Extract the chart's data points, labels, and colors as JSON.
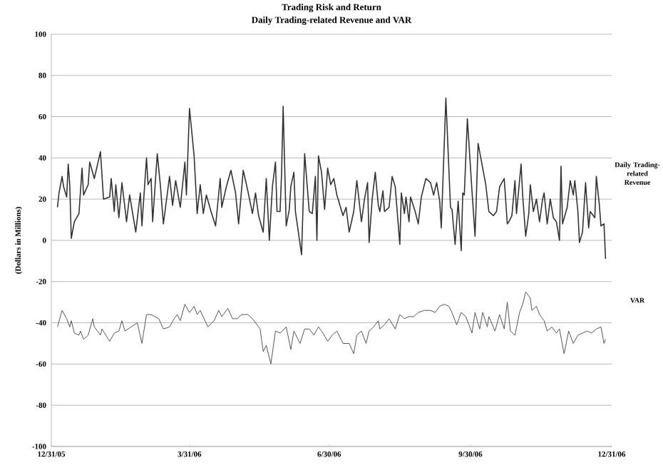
{
  "chart_data": {
    "type": "line",
    "title": "Trading Risk and Return",
    "subtitle": "Daily Trading-related Revenue and VAR",
    "ylabel": "(Dollars in Millions)",
    "xlim": [
      "2005-12-31",
      "2006-12-31"
    ],
    "xticks": [
      {
        "value": "2005-12-31",
        "label": "12/31/05"
      },
      {
        "value": "2006-03-31",
        "label": "3/31/06"
      },
      {
        "value": "2006-06-30",
        "label": "6/30/06"
      },
      {
        "value": "2006-09-30",
        "label": "9/30/06"
      },
      {
        "value": "2006-12-31",
        "label": "12/31/06"
      }
    ],
    "ylim": [
      -100,
      100
    ],
    "yticks": [
      -100,
      -80,
      -60,
      -40,
      -20,
      0,
      20,
      40,
      60,
      80,
      100
    ],
    "grid": "y",
    "legend": false,
    "marker": "none",
    "line_style": "solid",
    "series": [
      {
        "name": "Daily Trading-related Revenue",
        "color": "#333333",
        "x": [
          "2006-01-04",
          "2006-01-05",
          "2006-01-07",
          "2006-01-08",
          "2006-01-10",
          "2006-01-11",
          "2006-01-12",
          "2006-01-13",
          "2006-01-15",
          "2006-01-18",
          "2006-01-20",
          "2006-01-21",
          "2006-01-24",
          "2006-01-25",
          "2006-01-28",
          "2006-02-01",
          "2006-02-03",
          "2006-02-07",
          "2006-02-08",
          "2006-02-10",
          "2006-02-11",
          "2006-02-13",
          "2006-02-15",
          "2006-02-18",
          "2006-02-20",
          "2006-02-24",
          "2006-02-27",
          "2006-02-28",
          "2006-03-03",
          "2006-03-04",
          "2006-03-06",
          "2006-03-07",
          "2006-03-10",
          "2006-03-12",
          "2006-03-14",
          "2006-03-18",
          "2006-03-20",
          "2006-03-22",
          "2006-03-25",
          "2006-03-28",
          "2006-03-29",
          "2006-03-31",
          "2006-04-03",
          "2006-04-05",
          "2006-04-07",
          "2006-04-09",
          "2006-04-11",
          "2006-04-14",
          "2006-04-17",
          "2006-04-20",
          "2006-04-21",
          "2006-04-24",
          "2006-04-27",
          "2006-04-30",
          "2006-05-02",
          "2006-05-05",
          "2006-05-08",
          "2006-05-11",
          "2006-05-13",
          "2006-05-15",
          "2006-05-18",
          "2006-05-20",
          "2006-05-22",
          "2006-05-24",
          "2006-05-26",
          "2006-05-27",
          "2006-05-29",
          "2006-05-30",
          "2006-05-31",
          "2006-06-02",
          "2006-06-04",
          "2006-06-05",
          "2006-06-07",
          "2006-06-08",
          "2006-06-12",
          "2006-06-14",
          "2006-06-17",
          "2006-06-19",
          "2006-06-21",
          "2006-06-22",
          "2006-06-23",
          "2006-06-25",
          "2006-06-27",
          "2006-06-29",
          "2006-07-01",
          "2006-07-03",
          "2006-07-05",
          "2006-07-09",
          "2006-07-11",
          "2006-07-13",
          "2006-07-16",
          "2006-07-18",
          "2006-07-21",
          "2006-07-23",
          "2006-07-25",
          "2006-07-26",
          "2006-07-28",
          "2006-07-30",
          "2006-08-01",
          "2006-08-02",
          "2006-08-04",
          "2006-08-05",
          "2006-08-08",
          "2006-08-10",
          "2006-08-12",
          "2006-08-15",
          "2006-08-16",
          "2006-08-18",
          "2006-08-19",
          "2006-08-21",
          "2006-08-22",
          "2006-08-25",
          "2006-08-27",
          "2006-08-29",
          "2006-09-01",
          "2006-09-04",
          "2006-09-06",
          "2006-09-08",
          "2006-09-10",
          "2006-09-11",
          "2006-09-14",
          "2006-09-17",
          "2006-09-18",
          "2006-09-20",
          "2006-09-22",
          "2006-09-24",
          "2006-09-25",
          "2006-09-26",
          "2006-09-28",
          "2006-10-01",
          "2006-10-03",
          "2006-10-05",
          "2006-10-08",
          "2006-10-10",
          "2006-10-12",
          "2006-10-15",
          "2006-10-17",
          "2006-10-19",
          "2006-10-22",
          "2006-10-24",
          "2006-10-25",
          "2006-10-27",
          "2006-10-29",
          "2006-10-30",
          "2006-11-02",
          "2006-11-03",
          "2006-11-05",
          "2006-11-07",
          "2006-11-08",
          "2006-11-10",
          "2006-11-12",
          "2006-11-14",
          "2006-11-16",
          "2006-11-17",
          "2006-11-19",
          "2006-11-21",
          "2006-11-23",
          "2006-11-25",
          "2006-11-27",
          "2006-11-28",
          "2006-11-29",
          "2006-12-02",
          "2006-12-04",
          "2006-12-06",
          "2006-12-07",
          "2006-12-09",
          "2006-12-10",
          "2006-12-12",
          "2006-12-14",
          "2006-12-16",
          "2006-12-17",
          "2006-12-20",
          "2006-12-21",
          "2006-12-23",
          "2006-12-24",
          "2006-12-26",
          "2006-12-27"
        ],
        "values": [
          16,
          23,
          31,
          26,
          21,
          37,
          27,
          1,
          9,
          13,
          35,
          22,
          27,
          38,
          30,
          43,
          20,
          21,
          30,
          14,
          27,
          11,
          28,
          9,
          22,
          4,
          23,
          7,
          40,
          27,
          30,
          9,
          42,
          27,
          8,
          31,
          17,
          29,
          16,
          38,
          22,
          64,
          41,
          13,
          27,
          13,
          22,
          14,
          7,
          30,
          16,
          26,
          34,
          23,
          8,
          34,
          24,
          13,
          23,
          12,
          4,
          30,
          0,
          26,
          38,
          14,
          14,
          33,
          65,
          7,
          15,
          26,
          33,
          14,
          -7,
          42,
          14,
          13,
          31,
          0,
          41,
          33,
          15,
          35,
          27,
          30,
          22,
          12,
          16,
          4,
          14,
          29,
          9,
          20,
          28,
          -1,
          20,
          33,
          17,
          14,
          24,
          14,
          16,
          31,
          26,
          -2,
          23,
          13,
          21,
          9,
          21,
          14,
          8,
          21,
          30,
          28,
          22,
          28,
          19,
          6,
          69,
          16,
          15,
          -2,
          19,
          -5,
          23,
          22,
          59,
          24,
          2,
          47,
          35,
          27,
          14,
          12,
          14,
          26,
          30,
          8,
          9,
          12,
          29,
          13,
          37,
          22,
          2,
          13,
          27,
          14,
          20,
          9,
          20,
          23,
          8,
          20,
          11,
          9,
          0,
          36,
          8,
          16,
          29,
          22,
          29,
          14,
          -1,
          4,
          28,
          6,
          14,
          11,
          31,
          17,
          7,
          8,
          -9
        ]
      },
      {
        "name": "VAR",
        "color": "#555555",
        "x": [
          "2006-01-04",
          "2006-01-07",
          "2006-01-10",
          "2006-01-12",
          "2006-01-13",
          "2006-01-15",
          "2006-01-18",
          "2006-01-19",
          "2006-01-21",
          "2006-01-24",
          "2006-01-27",
          "2006-01-28",
          "2006-02-01",
          "2006-02-02",
          "2006-02-07",
          "2006-02-10",
          "2006-02-13",
          "2006-02-15",
          "2006-02-17",
          "2006-02-21",
          "2006-02-25",
          "2006-02-28",
          "2006-03-03",
          "2006-03-06",
          "2006-03-11",
          "2006-03-14",
          "2006-03-18",
          "2006-03-21",
          "2006-03-23",
          "2006-03-25",
          "2006-03-28",
          "2006-03-31",
          "2006-04-03",
          "2006-04-05",
          "2006-04-07",
          "2006-04-12",
          "2006-04-16",
          "2006-04-19",
          "2006-04-21",
          "2006-04-25",
          "2006-04-28",
          "2006-05-01",
          "2006-05-04",
          "2006-05-08",
          "2006-05-11",
          "2006-05-16",
          "2006-05-18",
          "2006-05-20",
          "2006-05-23",
          "2006-05-26",
          "2006-05-29",
          "2006-06-02",
          "2006-06-05",
          "2006-06-07",
          "2006-06-11",
          "2006-06-14",
          "2006-06-17",
          "2006-06-20",
          "2006-06-23",
          "2006-06-26",
          "2006-06-29",
          "2006-07-02",
          "2006-07-05",
          "2006-07-09",
          "2006-07-13",
          "2006-07-16",
          "2006-07-18",
          "2006-07-21",
          "2006-07-24",
          "2006-07-26",
          "2006-07-29",
          "2006-08-01",
          "2006-08-02",
          "2006-08-05",
          "2006-08-08",
          "2006-08-12",
          "2006-08-15",
          "2006-08-18",
          "2006-08-21",
          "2006-08-24",
          "2006-08-27",
          "2006-08-31",
          "2006-09-04",
          "2006-09-07",
          "2006-09-10",
          "2006-09-13",
          "2006-09-16",
          "2006-09-18",
          "2006-09-21",
          "2006-09-24",
          "2006-09-27",
          "2006-10-01",
          "2006-10-03",
          "2006-10-06",
          "2006-10-08",
          "2006-10-11",
          "2006-10-12",
          "2006-10-16",
          "2006-10-19",
          "2006-10-22",
          "2006-10-24",
          "2006-10-26",
          "2006-10-29",
          "2006-11-01",
          "2006-11-03",
          "2006-11-05",
          "2006-11-08",
          "2006-11-09",
          "2006-11-12",
          "2006-11-14",
          "2006-11-17",
          "2006-11-19",
          "2006-11-22",
          "2006-11-25",
          "2006-11-27",
          "2006-11-30",
          "2006-12-03",
          "2006-12-06",
          "2006-12-09",
          "2006-12-12",
          "2006-12-15",
          "2006-12-18",
          "2006-12-21",
          "2006-12-24",
          "2006-12-26",
          "2006-12-27"
        ],
        "values": [
          -42,
          -34,
          -38,
          -42,
          -39,
          -45,
          -46,
          -44,
          -48,
          -46,
          -38,
          -42,
          -46,
          -43,
          -49,
          -45,
          -44,
          -39,
          -44,
          -42,
          -40,
          -50,
          -36,
          -36,
          -38,
          -43,
          -42,
          -38,
          -36,
          -39,
          -31,
          -35,
          -32,
          -36,
          -34,
          -42,
          -39,
          -34,
          -37,
          -33,
          -38,
          -38,
          -36,
          -36,
          -38,
          -43,
          -54,
          -51,
          -60,
          -44,
          -45,
          -42,
          -53,
          -44,
          -50,
          -43,
          -43,
          -46,
          -42,
          -45,
          -49,
          -46,
          -44,
          -50,
          -50,
          -55,
          -46,
          -44,
          -50,
          -44,
          -42,
          -39,
          -43,
          -41,
          -38,
          -43,
          -36,
          -38,
          -37,
          -37,
          -35,
          -34,
          -34,
          -35,
          -32,
          -31,
          -32,
          -35,
          -41,
          -35,
          -37,
          -45,
          -35,
          -43,
          -35,
          -42,
          -37,
          -44,
          -36,
          -43,
          -30,
          -44,
          -46,
          -35,
          -31,
          -25,
          -28,
          -34,
          -32,
          -36,
          -39,
          -44,
          -42,
          -45,
          -43,
          -55,
          -44,
          -50,
          -46,
          -45,
          -44,
          -45,
          -43,
          -42,
          -50,
          -48
        ]
      }
    ]
  }
}
